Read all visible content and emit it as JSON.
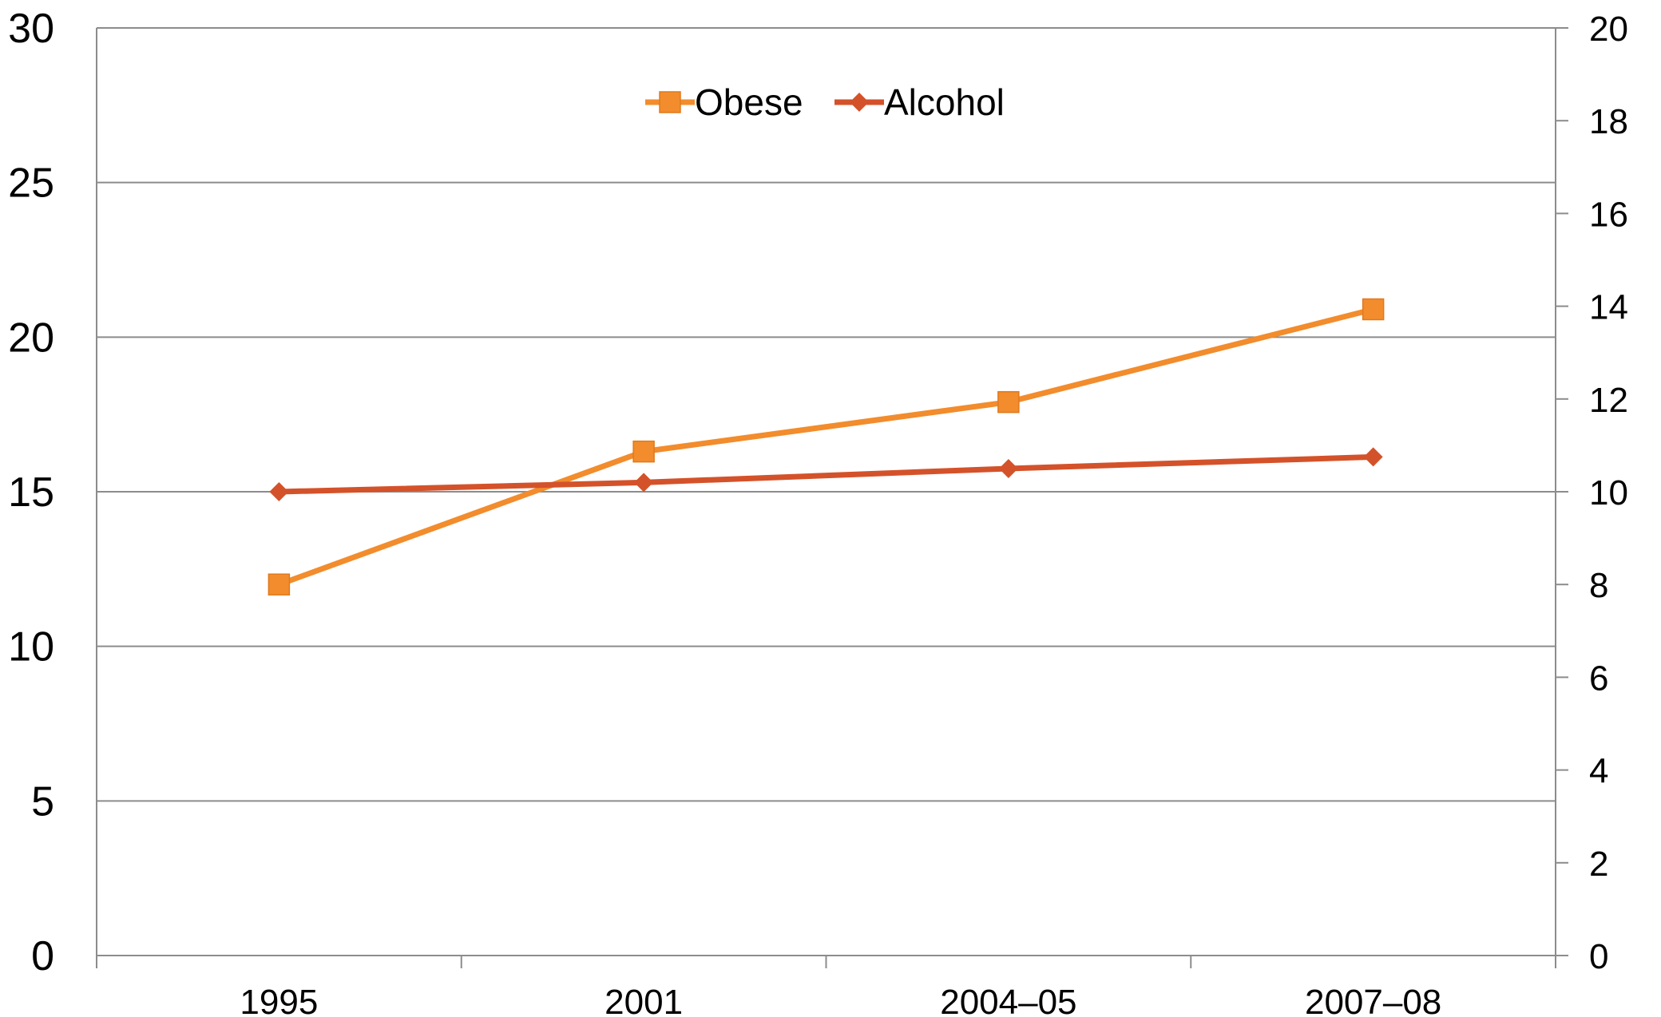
{
  "chart_data": {
    "type": "line",
    "categories": [
      "1995",
      "2001",
      "2004–05",
      "2007–08"
    ],
    "series": [
      {
        "name": "Obese",
        "axis": "left",
        "values": [
          12.0,
          16.3,
          17.9,
          20.9
        ],
        "color": "#f28c2c",
        "marker": "square"
      },
      {
        "name": "Alcohol",
        "axis": "right",
        "values": [
          10.0,
          10.2,
          10.5,
          10.75
        ],
        "color": "#d4522a",
        "marker": "diamond"
      }
    ],
    "y_left": {
      "min": 0,
      "max": 30,
      "ticks": [
        "0",
        "5",
        "10",
        "15",
        "20",
        "25",
        "30"
      ]
    },
    "y_right": {
      "min": 0,
      "max": 20,
      "ticks": [
        "0",
        "2",
        "4",
        "6",
        "8",
        "10",
        "12",
        "14",
        "16",
        "18",
        "20"
      ]
    },
    "grid": true,
    "legend_position": "top-center",
    "title": "",
    "xlabel": "",
    "ylabel": ""
  }
}
